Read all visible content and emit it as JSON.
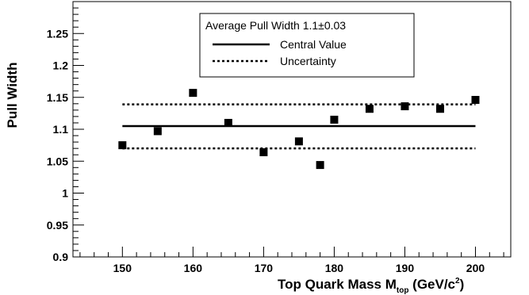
{
  "chart_data": {
    "type": "scatter",
    "title": "",
    "xlabel": {
      "main": "Top Quark Mass M",
      "sub": "top",
      "unit_pre": " (GeV/c",
      "unit_sup": "2",
      "unit_post": ")"
    },
    "ylabel": "Pull Width",
    "xlim": [
      143,
      205
    ],
    "ylim": [
      0.9,
      1.3
    ],
    "x_ticks": [
      150,
      160,
      170,
      180,
      190,
      200
    ],
    "x_tick_labels": [
      "150",
      "160",
      "170",
      "180",
      "190",
      "200"
    ],
    "y_ticks": [
      0.9,
      0.95,
      1.0,
      1.05,
      1.1,
      1.15,
      1.2,
      1.25
    ],
    "y_tick_labels": [
      "0.9",
      "0.95",
      "1",
      "1.05",
      "1.1",
      "1.15",
      "1.2",
      "1.25"
    ],
    "series": [
      {
        "kind": "points",
        "x": [
          150,
          155,
          160,
          165,
          170,
          175,
          178,
          180,
          185,
          190,
          195,
          200
        ],
        "y": [
          1.075,
          1.097,
          1.157,
          1.11,
          1.064,
          1.081,
          1.044,
          1.115,
          1.132,
          1.136,
          1.132,
          1.146
        ],
        "yerr": [
          0.005,
          0.005,
          0.005,
          0.005,
          0.005,
          0.005,
          0.005,
          0.005,
          0.005,
          0.005,
          0.005,
          0.005
        ]
      },
      {
        "kind": "hline",
        "name": "Central Value",
        "style": "solid",
        "x_range": [
          150,
          200
        ],
        "y": 1.105
      },
      {
        "kind": "hline",
        "name": "Uncertainty",
        "style": "dotted",
        "x_range": [
          150,
          200
        ],
        "y": 1.139
      },
      {
        "kind": "hline",
        "name": "Uncertainty",
        "style": "dotted",
        "x_range": [
          150,
          200
        ],
        "y": 1.07
      }
    ],
    "legend": {
      "position": "top-right",
      "header": "Average Pull Width 1.1",
      "header_pm": "±",
      "header_err": "0.03",
      "entries": [
        {
          "label": "Central Value",
          "style": "solid"
        },
        {
          "label": "Uncertainty",
          "style": "dotted"
        }
      ]
    },
    "grid": false
  }
}
